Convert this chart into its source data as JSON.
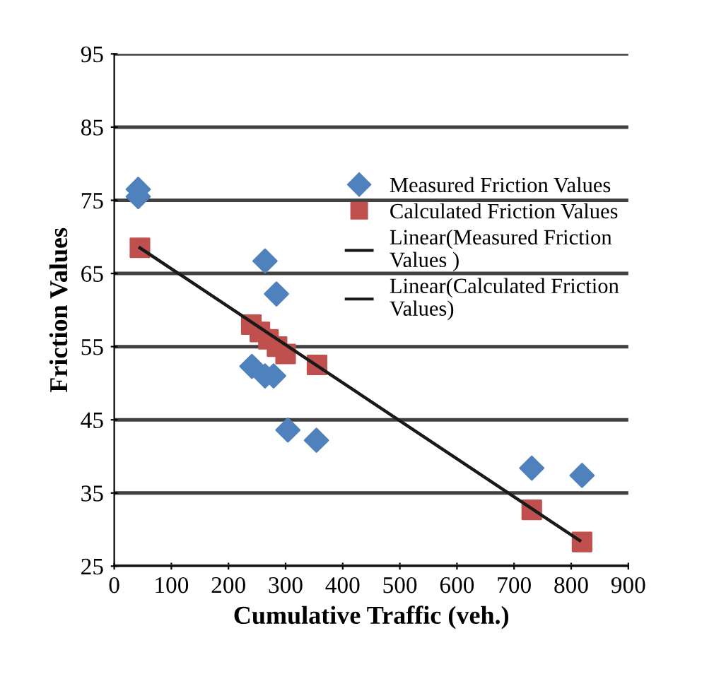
{
  "chart_data": {
    "type": "scatter",
    "xlabel": "Cumulative Traffic (veh.)",
    "ylabel": "Friction Values",
    "xlim": [
      0,
      900
    ],
    "xticks": [
      0,
      100,
      200,
      300,
      400,
      500,
      600,
      700,
      800,
      900
    ],
    "ylim": [
      25,
      95
    ],
    "yticks": [
      25,
      35,
      45,
      55,
      65,
      75,
      85,
      95
    ],
    "grid": "y",
    "legend": "right",
    "series": [
      {
        "name": "Measured Friction Values",
        "marker": "diamond",
        "color": "#4f81bd",
        "x": [
          42,
          42,
          264,
          284,
          241,
          264,
          279,
          304,
          354,
          731,
          819
        ],
        "values": [
          76.5,
          75.5,
          66.7,
          62.2,
          52.3,
          51,
          51,
          43.6,
          42.2,
          38.4,
          37.4
        ]
      },
      {
        "name": "Calculated Friction Values",
        "marker": "square",
        "color": "#c0504d",
        "x": [
          45,
          240,
          255,
          270,
          285,
          300,
          355,
          731,
          819
        ],
        "values": [
          68.5,
          58,
          57,
          56,
          55,
          54,
          52.5,
          32.7,
          28.3
        ]
      },
      {
        "name": "Linear(Measured Friction Values )",
        "type": "line",
        "marker": "none",
        "color": "#1a1a1a",
        "x": [
          45,
          815
        ],
        "values": [
          68.5,
          28.5
        ]
      },
      {
        "name": "Linear(Calculated Friction Values)",
        "type": "line",
        "marker": "none",
        "color": "#1a1a1a",
        "x": [
          45,
          815
        ],
        "values": [
          68.5,
          28.5
        ]
      }
    ]
  }
}
